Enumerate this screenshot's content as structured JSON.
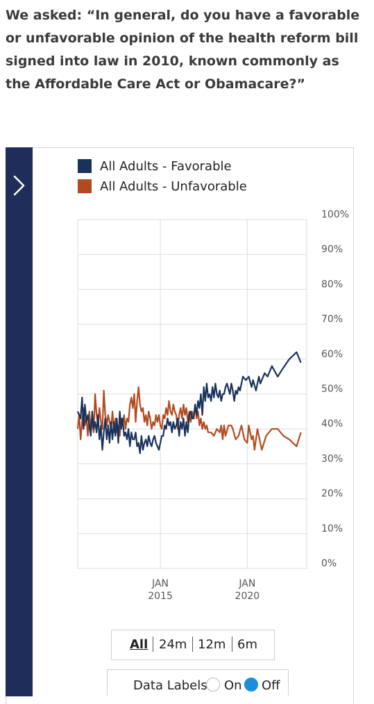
{
  "question": "We asked: “In general, do you have a favorable or unfavorable opinion of the health reform bill signed into law in 2010, known commonly as the Affordable Care Act or Obamacare?”",
  "sidebar": {
    "toggle_icon": "chevron-right-icon"
  },
  "controls": {
    "ranges": [
      "All",
      "24m",
      "12m",
      "6m"
    ],
    "active_range": "All",
    "data_labels_title": "Data Labels",
    "data_labels_on": "On",
    "data_labels_off": "Off",
    "data_labels_state": "Off"
  },
  "colors": {
    "favorable": "#17325c",
    "unfavorable": "#b24a1f",
    "sidebar": "#1e2d5a",
    "radio_selected": "#1a90d9"
  },
  "chart_data": {
    "type": "line",
    "title": "",
    "xlabel": "",
    "ylabel": "",
    "ylim": [
      0,
      100
    ],
    "y_ticks": [
      "100%",
      "90%",
      "80%",
      "70%",
      "60%",
      "50%",
      "40%",
      "30%",
      "20%",
      "10%",
      "0%"
    ],
    "x_ticks": [
      {
        "x": "2015-01",
        "label_top": "JAN",
        "label_bottom": "2015"
      },
      {
        "x": "2020-01",
        "label_top": "JAN",
        "label_bottom": "2020"
      }
    ],
    "xlim": [
      "2010-04",
      "2023-06"
    ],
    "grid": true,
    "legend_position": "top-left",
    "series": [
      {
        "name": "All Adults - Favorable",
        "color": "#17325c",
        "points": [
          [
            "2010-04",
            45
          ],
          [
            "2010-06",
            43
          ],
          [
            "2010-07",
            49
          ],
          [
            "2010-08",
            40
          ],
          [
            "2010-09",
            47
          ],
          [
            "2010-10",
            42
          ],
          [
            "2010-11",
            44
          ],
          [
            "2011-01",
            38
          ],
          [
            "2011-02",
            45
          ],
          [
            "2011-03",
            40
          ],
          [
            "2011-04",
            42
          ],
          [
            "2011-05",
            39
          ],
          [
            "2011-06",
            44
          ],
          [
            "2011-07",
            37
          ],
          [
            "2011-08",
            41
          ],
          [
            "2011-09",
            34
          ],
          [
            "2011-10",
            39
          ],
          [
            "2011-11",
            43
          ],
          [
            "2011-12",
            37
          ],
          [
            "2012-01",
            41
          ],
          [
            "2012-02",
            36
          ],
          [
            "2012-03",
            42
          ],
          [
            "2012-04",
            37
          ],
          [
            "2012-05",
            42
          ],
          [
            "2012-06",
            38
          ],
          [
            "2012-07",
            43
          ],
          [
            "2012-08",
            36
          ],
          [
            "2012-09",
            45
          ],
          [
            "2012-10",
            40
          ],
          [
            "2012-11",
            43
          ],
          [
            "2012-12",
            38
          ],
          [
            "2013-01",
            39
          ],
          [
            "2013-02",
            37
          ],
          [
            "2013-03",
            40
          ],
          [
            "2013-04",
            35
          ],
          [
            "2013-05",
            39
          ],
          [
            "2013-06",
            37
          ],
          [
            "2013-07",
            37
          ],
          [
            "2013-08",
            39
          ],
          [
            "2013-09",
            35
          ],
          [
            "2013-10",
            36
          ],
          [
            "2013-11",
            33
          ],
          [
            "2013-12",
            38
          ],
          [
            "2014-01",
            34
          ],
          [
            "2014-02",
            36
          ],
          [
            "2014-03",
            37
          ],
          [
            "2014-04",
            35
          ],
          [
            "2014-05",
            38
          ],
          [
            "2014-06",
            36
          ],
          [
            "2014-07",
            35
          ],
          [
            "2014-08",
            37
          ],
          [
            "2014-09",
            38
          ],
          [
            "2014-10",
            36
          ],
          [
            "2014-11",
            35
          ],
          [
            "2014-12",
            34
          ],
          [
            "2015-01",
            36
          ],
          [
            "2015-02",
            38
          ],
          [
            "2015-03",
            38
          ],
          [
            "2015-04",
            41
          ],
          [
            "2015-05",
            40
          ],
          [
            "2015-06",
            43
          ],
          [
            "2015-07",
            41
          ],
          [
            "2015-08",
            42
          ],
          [
            "2015-09",
            39
          ],
          [
            "2015-10",
            42
          ],
          [
            "2015-11",
            40
          ],
          [
            "2015-12",
            41
          ],
          [
            "2016-01",
            43
          ],
          [
            "2016-02",
            38
          ],
          [
            "2016-03",
            42
          ],
          [
            "2016-04",
            40
          ],
          [
            "2016-05",
            43
          ],
          [
            "2016-06",
            38
          ],
          [
            "2016-07",
            42
          ],
          [
            "2016-08",
            39
          ],
          [
            "2016-09",
            44
          ],
          [
            "2016-10",
            45
          ],
          [
            "2016-11",
            43
          ],
          [
            "2016-12",
            43
          ],
          [
            "2017-01",
            47
          ],
          [
            "2017-02",
            44
          ],
          [
            "2017-03",
            48
          ],
          [
            "2017-04",
            46
          ],
          [
            "2017-05",
            50
          ],
          [
            "2017-06",
            44
          ],
          [
            "2017-07",
            52
          ],
          [
            "2017-08",
            48
          ],
          [
            "2017-09",
            53
          ],
          [
            "2017-10",
            49
          ],
          [
            "2017-11",
            50
          ],
          [
            "2017-12",
            48
          ],
          [
            "2018-01",
            52
          ],
          [
            "2018-02",
            49
          ],
          [
            "2018-03",
            53
          ],
          [
            "2018-04",
            50
          ],
          [
            "2018-05",
            49
          ],
          [
            "2018-06",
            51
          ],
          [
            "2018-07",
            48
          ],
          [
            "2018-08",
            50
          ],
          [
            "2018-09",
            50
          ],
          [
            "2018-10",
            52
          ],
          [
            "2018-11",
            53
          ],
          [
            "2019-01",
            50
          ],
          [
            "2019-02",
            53
          ],
          [
            "2019-03",
            51
          ],
          [
            "2019-04",
            48
          ],
          [
            "2019-05",
            51
          ],
          [
            "2019-06",
            50
          ],
          [
            "2019-07",
            52
          ],
          [
            "2019-08",
            51
          ],
          [
            "2019-09",
            53
          ],
          [
            "2019-10",
            55
          ],
          [
            "2019-12",
            54
          ],
          [
            "2020-02",
            55
          ],
          [
            "2020-04",
            52
          ],
          [
            "2020-05",
            54
          ],
          [
            "2020-07",
            51
          ],
          [
            "2020-09",
            55
          ],
          [
            "2020-10",
            53
          ],
          [
            "2021-01",
            56
          ],
          [
            "2021-03",
            55
          ],
          [
            "2021-06",
            58
          ],
          [
            "2021-10",
            55
          ],
          [
            "2022-01",
            57
          ],
          [
            "2022-06",
            60
          ],
          [
            "2022-11",
            62
          ],
          [
            "2023-02",
            59
          ]
        ]
      },
      {
        "name": "All Adults - Unfavorable",
        "color": "#b24a1f",
        "points": [
          [
            "2010-04",
            40
          ],
          [
            "2010-05",
            44
          ],
          [
            "2010-06",
            37
          ],
          [
            "2010-07",
            42
          ],
          [
            "2010-08",
            46
          ],
          [
            "2010-09",
            41
          ],
          [
            "2010-10",
            43
          ],
          [
            "2010-11",
            38
          ],
          [
            "2010-12",
            45
          ],
          [
            "2011-01",
            40
          ],
          [
            "2011-02",
            42
          ],
          [
            "2011-03",
            39
          ],
          [
            "2011-04",
            50
          ],
          [
            "2011-05",
            44
          ],
          [
            "2011-06",
            41
          ],
          [
            "2011-07",
            46
          ],
          [
            "2011-08",
            42
          ],
          [
            "2011-09",
            40
          ],
          [
            "2011-10",
            51
          ],
          [
            "2011-11",
            44
          ],
          [
            "2011-12",
            41
          ],
          [
            "2012-01",
            44
          ],
          [
            "2012-02",
            42
          ],
          [
            "2012-03",
            40
          ],
          [
            "2012-04",
            45
          ],
          [
            "2012-05",
            39
          ],
          [
            "2012-06",
            43
          ],
          [
            "2012-07",
            39
          ],
          [
            "2012-08",
            41
          ],
          [
            "2012-09",
            38
          ],
          [
            "2012-10",
            43
          ],
          [
            "2012-11",
            41
          ],
          [
            "2012-12",
            44
          ],
          [
            "2013-01",
            40
          ],
          [
            "2013-02",
            43
          ],
          [
            "2013-03",
            42
          ],
          [
            "2013-04",
            47
          ],
          [
            "2013-05",
            49
          ],
          [
            "2013-06",
            46
          ],
          [
            "2013-07",
            50
          ],
          [
            "2013-08",
            42
          ],
          [
            "2013-09",
            48
          ],
          [
            "2013-10",
            52
          ],
          [
            "2013-11",
            47
          ],
          [
            "2013-12",
            45
          ],
          [
            "2014-01",
            46
          ],
          [
            "2014-02",
            42
          ],
          [
            "2014-03",
            44
          ],
          [
            "2014-04",
            41
          ],
          [
            "2014-05",
            45
          ],
          [
            "2014-06",
            43
          ],
          [
            "2014-07",
            40
          ],
          [
            "2014-08",
            42
          ],
          [
            "2014-09",
            41
          ],
          [
            "2014-10",
            44
          ],
          [
            "2014-11",
            42
          ],
          [
            "2014-12",
            44
          ],
          [
            "2015-01",
            41
          ],
          [
            "2015-02",
            40
          ],
          [
            "2015-03",
            44
          ],
          [
            "2015-04",
            43
          ],
          [
            "2015-05",
            46
          ],
          [
            "2015-06",
            44
          ],
          [
            "2015-07",
            48
          ],
          [
            "2015-08",
            45
          ],
          [
            "2015-09",
            44
          ],
          [
            "2015-10",
            47
          ],
          [
            "2015-11",
            45
          ],
          [
            "2015-12",
            44
          ],
          [
            "2016-01",
            40
          ],
          [
            "2016-02",
            44
          ],
          [
            "2016-03",
            46
          ],
          [
            "2016-04",
            43
          ],
          [
            "2016-05",
            47
          ],
          [
            "2016-06",
            44
          ],
          [
            "2016-07",
            46
          ],
          [
            "2016-08",
            42
          ],
          [
            "2016-09",
            45
          ],
          [
            "2016-10",
            42
          ],
          [
            "2016-11",
            45
          ],
          [
            "2016-12",
            43
          ],
          [
            "2017-01",
            47
          ],
          [
            "2017-02",
            43
          ],
          [
            "2017-03",
            45
          ],
          [
            "2017-04",
            41
          ],
          [
            "2017-05",
            43
          ],
          [
            "2017-06",
            40
          ],
          [
            "2017-07",
            42
          ],
          [
            "2017-08",
            40
          ],
          [
            "2017-09",
            41
          ],
          [
            "2017-10",
            39
          ],
          [
            "2017-12",
            39
          ],
          [
            "2018-02",
            38
          ],
          [
            "2018-04",
            40
          ],
          [
            "2018-06",
            39
          ],
          [
            "2018-07",
            41
          ],
          [
            "2018-08",
            37
          ],
          [
            "2018-09",
            41
          ],
          [
            "2018-10",
            38
          ],
          [
            "2018-12",
            41
          ],
          [
            "2019-02",
            41
          ],
          [
            "2019-03",
            40
          ],
          [
            "2019-05",
            37
          ],
          [
            "2019-07",
            38
          ],
          [
            "2019-09",
            41
          ],
          [
            "2019-11",
            37
          ],
          [
            "2020-01",
            36
          ],
          [
            "2020-02",
            41
          ],
          [
            "2020-04",
            37
          ],
          [
            "2020-05",
            38
          ],
          [
            "2020-06",
            34
          ],
          [
            "2020-08",
            40
          ],
          [
            "2020-10",
            36
          ],
          [
            "2020-11",
            34
          ],
          [
            "2021-02",
            38
          ],
          [
            "2021-06",
            40
          ],
          [
            "2021-10",
            40
          ],
          [
            "2022-02",
            38
          ],
          [
            "2022-06",
            37
          ],
          [
            "2022-11",
            35
          ],
          [
            "2023-02",
            39
          ]
        ]
      }
    ]
  }
}
